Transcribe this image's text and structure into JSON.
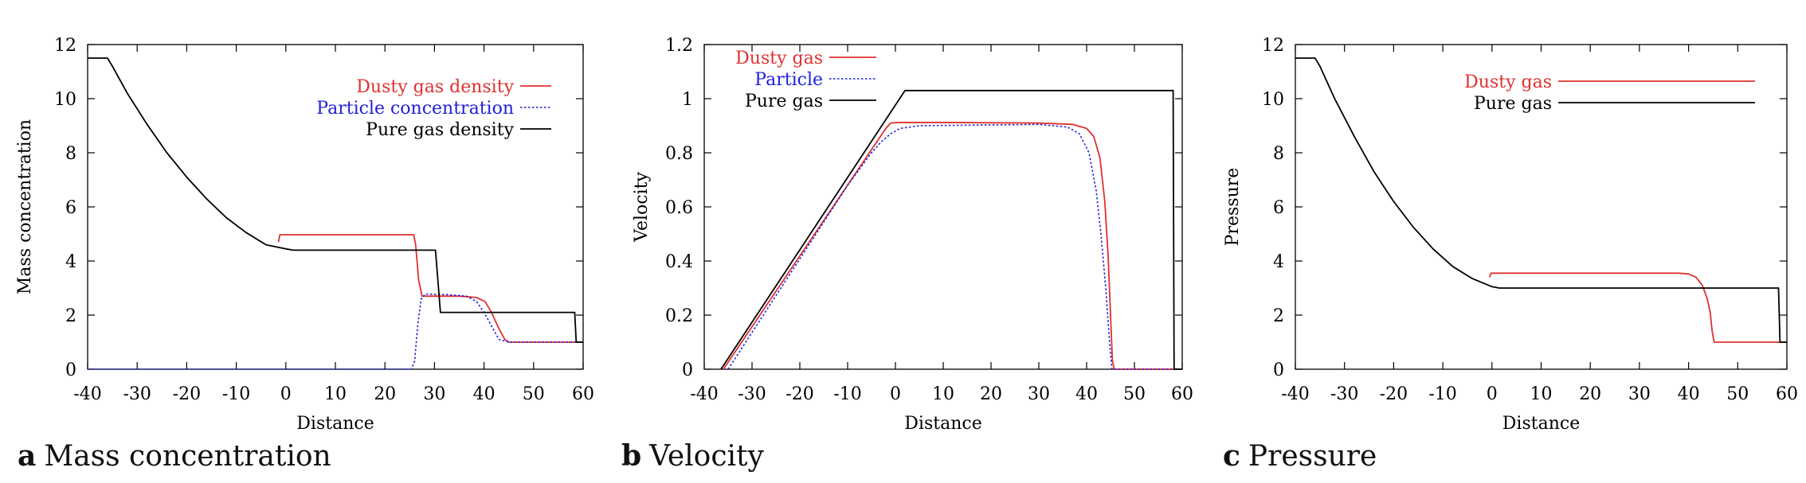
{
  "chart_data": [
    {
      "type": "line",
      "panel_letter": "a",
      "title": "Mass concentration",
      "xlabel": "Distance",
      "ylabel": "Mass concentration",
      "xlim": [
        -40,
        60
      ],
      "ylim": [
        0,
        12
      ],
      "xticks": [
        "-40",
        "-30",
        "-20",
        "-10",
        "0",
        "10",
        "20",
        "30",
        "40",
        "50",
        "60"
      ],
      "yticks": [
        "0",
        "2",
        "4",
        "6",
        "8",
        "10",
        "12"
      ],
      "legend_position": "top-right",
      "series": [
        {
          "name": "Dusty gas density",
          "color": "#e03030",
          "dash": "solid",
          "x": [
            -1.5,
            -1.2,
            25.8,
            26.2,
            26.8,
            27.5,
            35.0,
            38.5,
            40.2,
            41.5,
            43.0,
            44.2,
            45.0,
            60.0
          ],
          "y": [
            4.7,
            4.97,
            4.97,
            4.6,
            3.3,
            2.7,
            2.7,
            2.65,
            2.5,
            2.1,
            1.5,
            1.1,
            1.0,
            1.0
          ]
        },
        {
          "name": "Particle concentration",
          "color": "#2020dd",
          "dash": "dotted",
          "x": [
            -40.0,
            25.3,
            26.0,
            26.6,
            27.3,
            28.2,
            33.0,
            36.5,
            38.5,
            40.0,
            41.5,
            43.0,
            45.0,
            60.0
          ],
          "y": [
            0.0,
            0.0,
            0.3,
            1.6,
            2.6,
            2.78,
            2.75,
            2.7,
            2.5,
            2.1,
            1.6,
            1.1,
            1.0,
            1.0
          ]
        },
        {
          "name": "Pure gas density",
          "color": "#000000",
          "dash": "solid",
          "x": [
            -40.0,
            -36.0,
            -35.0,
            -32.0,
            -28.0,
            -24.0,
            -20.0,
            -16.0,
            -12.0,
            -8.0,
            -4.0,
            0.0,
            1.5,
            30.2,
            31.2,
            58.3,
            58.6,
            60.0
          ],
          "y": [
            11.5,
            11.5,
            11.2,
            10.2,
            9.05,
            8.0,
            7.1,
            6.3,
            5.6,
            5.05,
            4.6,
            4.45,
            4.4,
            4.4,
            2.1,
            2.1,
            1.0,
            1.0
          ]
        }
      ]
    },
    {
      "type": "line",
      "panel_letter": "b",
      "title": "Velocity",
      "xlabel": "Distance",
      "ylabel": "Velocity",
      "xlim": [
        -40,
        60
      ],
      "ylim": [
        0,
        1.2
      ],
      "xticks": [
        "-40",
        "-30",
        "-20",
        "-10",
        "0",
        "10",
        "20",
        "30",
        "40",
        "50",
        "60"
      ],
      "yticks": [
        "0",
        "0.2",
        "0.4",
        "0.6",
        "0.8",
        "1",
        "1.2"
      ],
      "legend_position": "top-left",
      "series": [
        {
          "name": "Dusty gas",
          "color": "#e03030",
          "dash": "solid",
          "x": [
            -36.0,
            -2.0,
            -1.0,
            0.5,
            10.0,
            30.0,
            37.0,
            40.0,
            41.5,
            42.8,
            43.8,
            44.5,
            45.0,
            45.4,
            45.8,
            60.0
          ],
          "y": [
            0.0,
            0.89,
            0.91,
            0.912,
            0.912,
            0.91,
            0.905,
            0.89,
            0.86,
            0.78,
            0.62,
            0.42,
            0.2,
            0.03,
            0.0,
            0.0
          ]
        },
        {
          "name": "Particle",
          "color": "#2020dd",
          "dash": "dotted",
          "x": [
            -35.0,
            -10.0,
            -5.0,
            -3.0,
            -1.0,
            1.0,
            5.0,
            30.0,
            36.0,
            38.5,
            40.5,
            42.0,
            43.0,
            44.0,
            44.8,
            45.3,
            60.0
          ],
          "y": [
            0.0,
            0.68,
            0.8,
            0.84,
            0.87,
            0.89,
            0.9,
            0.905,
            0.895,
            0.87,
            0.8,
            0.66,
            0.5,
            0.3,
            0.1,
            0.0,
            0.0
          ]
        },
        {
          "name": "Pure gas",
          "color": "#000000",
          "dash": "solid",
          "x": [
            -36.5,
            2.0,
            58.1,
            58.3,
            60.0
          ],
          "y": [
            0.0,
            1.03,
            1.03,
            0.0,
            0.0
          ]
        }
      ]
    },
    {
      "type": "line",
      "panel_letter": "c",
      "title": "Pressure",
      "xlabel": "Distance",
      "ylabel": "Pressure",
      "xlim": [
        -40,
        60
      ],
      "ylim": [
        0,
        12
      ],
      "xticks": [
        "-40",
        "-30",
        "-20",
        "-10",
        "0",
        "10",
        "20",
        "30",
        "40",
        "50",
        "60"
      ],
      "yticks": [
        "0",
        "2",
        "4",
        "6",
        "8",
        "10",
        "12"
      ],
      "legend_position": "top-right",
      "series": [
        {
          "name": "Dusty gas",
          "color": "#e03030",
          "dash": "solid",
          "x": [
            -0.5,
            -0.2,
            30.0,
            38.0,
            40.0,
            41.5,
            42.8,
            43.8,
            44.4,
            44.8,
            45.2,
            60.0
          ],
          "y": [
            3.4,
            3.55,
            3.55,
            3.55,
            3.52,
            3.4,
            3.1,
            2.6,
            2.1,
            1.4,
            1.0,
            1.0
          ]
        },
        {
          "name": "Pure gas",
          "color": "#000000",
          "dash": "solid",
          "x": [
            -40.0,
            -36.0,
            -35.0,
            -32.0,
            -28.0,
            -24.0,
            -20.0,
            -16.0,
            -12.0,
            -8.0,
            -4.0,
            0.0,
            1.5,
            58.3,
            58.6,
            60.0
          ],
          "y": [
            11.5,
            11.5,
            11.2,
            10.0,
            8.6,
            7.3,
            6.2,
            5.25,
            4.45,
            3.8,
            3.35,
            3.05,
            3.0,
            3.0,
            1.0,
            1.0
          ]
        }
      ]
    }
  ]
}
